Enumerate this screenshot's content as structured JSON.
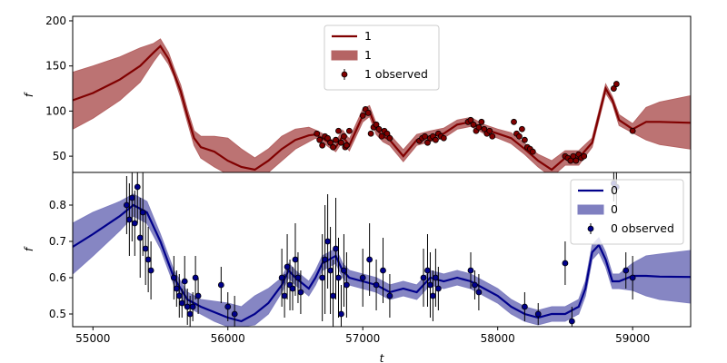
{
  "chart_data": [
    {
      "type": "line",
      "title": "",
      "xlabel": "",
      "ylabel": "f",
      "xlim": [
        54850,
        59430
      ],
      "ylim": [
        32,
        205
      ],
      "yticks": [
        50,
        100,
        150,
        200
      ],
      "series": [
        {
          "name": "1",
          "kind": "mean",
          "color": "#800000",
          "x": [
            54850,
            55000,
            55200,
            55350,
            55450,
            55500,
            55560,
            55600,
            55650,
            55700,
            55750,
            55800,
            55900,
            56000,
            56100,
            56200,
            56300,
            56400,
            56500,
            56600,
            56650,
            56700,
            56750,
            56800,
            56850,
            56900,
            57000,
            57050,
            57100,
            57150,
            57200,
            57300,
            57400,
            57500,
            57600,
            57700,
            57800,
            57900,
            58000,
            58100,
            58200,
            58300,
            58400,
            58500,
            58600,
            58700,
            58800,
            58850,
            58900,
            59000,
            59100,
            59200,
            59430
          ],
          "values": [
            112,
            120,
            135,
            150,
            165,
            172,
            158,
            142,
            122,
            95,
            70,
            60,
            55,
            45,
            38,
            35,
            45,
            58,
            68,
            73,
            74,
            70,
            65,
            60,
            72,
            62,
            95,
            100,
            80,
            72,
            68,
            50,
            68,
            72,
            75,
            85,
            88,
            80,
            75,
            70,
            58,
            45,
            35,
            48,
            48,
            65,
            125,
            112,
            90,
            80,
            88,
            88,
            87
          ]
        },
        {
          "name": "1",
          "kind": "band",
          "color": "#b56464",
          "x": [
            54850,
            55000,
            55200,
            55350,
            55450,
            55500,
            55560,
            55600,
            55650,
            55700,
            55750,
            55800,
            55900,
            56000,
            56100,
            56200,
            56300,
            56400,
            56500,
            56600,
            56650,
            56700,
            56750,
            56800,
            56850,
            56900,
            57000,
            57050,
            57100,
            57150,
            57200,
            57300,
            57400,
            57500,
            57600,
            57700,
            57800,
            57900,
            58000,
            58100,
            58200,
            58300,
            58400,
            58500,
            58600,
            58700,
            58800,
            58850,
            58900,
            59000,
            59100,
            59200,
            59430
          ],
          "lower": [
            80,
            92,
            112,
            132,
            155,
            165,
            152,
            138,
            115,
            88,
            62,
            48,
            38,
            30,
            22,
            25,
            32,
            45,
            58,
            66,
            70,
            66,
            60,
            55,
            66,
            56,
            88,
            94,
            74,
            66,
            62,
            44,
            62,
            66,
            70,
            80,
            83,
            75,
            70,
            64,
            52,
            38,
            27,
            40,
            40,
            60,
            120,
            108,
            84,
            76,
            68,
            63,
            58
          ],
          "upper": [
            143,
            150,
            160,
            170,
            175,
            180,
            165,
            148,
            129,
            102,
            78,
            72,
            72,
            70,
            58,
            48,
            58,
            72,
            80,
            82,
            79,
            75,
            70,
            66,
            79,
            69,
            102,
            106,
            86,
            78,
            74,
            57,
            74,
            78,
            81,
            90,
            93,
            85,
            80,
            76,
            64,
            52,
            45,
            56,
            56,
            70,
            130,
            116,
            96,
            86,
            104,
            110,
            117
          ]
        },
        {
          "name": "1 observed",
          "kind": "observed",
          "color": "#800000",
          "x": [
            56660,
            56680,
            56700,
            56720,
            56740,
            56760,
            56780,
            56800,
            56820,
            56840,
            56860,
            56870,
            56880,
            56900,
            57000,
            57020,
            57040,
            57060,
            57080,
            57100,
            57120,
            57140,
            57160,
            57180,
            57200,
            57420,
            57440,
            57460,
            57480,
            57500,
            57520,
            57540,
            57560,
            57580,
            57600,
            57780,
            57800,
            57820,
            57840,
            57860,
            57880,
            57900,
            57920,
            57940,
            57960,
            58120,
            58140,
            58160,
            58180,
            58200,
            58220,
            58240,
            58260,
            58500,
            58520,
            58540,
            58560,
            58580,
            58600,
            58620,
            58640,
            58860,
            58880,
            59000
          ],
          "values": [
            75,
            68,
            62,
            72,
            70,
            65,
            60,
            68,
            78,
            65,
            72,
            60,
            62,
            78,
            95,
            102,
            98,
            75,
            82,
            85,
            80,
            72,
            78,
            75,
            70,
            67,
            70,
            72,
            65,
            70,
            72,
            68,
            75,
            72,
            70,
            88,
            90,
            85,
            78,
            82,
            88,
            80,
            75,
            78,
            72,
            88,
            75,
            72,
            80,
            68,
            60,
            58,
            55,
            50,
            48,
            45,
            50,
            45,
            52,
            48,
            50,
            125,
            130,
            78
          ],
          "err": [
            3,
            3,
            3,
            3,
            3,
            3,
            3,
            3,
            3,
            3,
            3,
            3,
            3,
            3,
            3,
            3,
            3,
            3,
            3,
            3,
            3,
            3,
            3,
            3,
            3,
            3,
            3,
            3,
            3,
            3,
            3,
            3,
            3,
            3,
            3,
            3,
            3,
            3,
            3,
            3,
            3,
            3,
            3,
            3,
            3,
            3,
            3,
            3,
            3,
            3,
            3,
            3,
            3,
            3,
            3,
            3,
            3,
            3,
            3,
            3,
            3,
            3,
            3,
            3
          ]
        }
      ],
      "legend": {
        "position": "top-center",
        "entries": [
          {
            "label": "1",
            "marker": "line",
            "color": "#800000"
          },
          {
            "label": "1",
            "marker": "patch",
            "color": "#b56464"
          },
          {
            "label": "1 observed",
            "marker": "errorbar",
            "color": "#800000"
          }
        ]
      },
      "grid": false
    },
    {
      "type": "line",
      "title": "",
      "xlabel": "t",
      "ylabel": "f",
      "xlim": [
        54850,
        59430
      ],
      "ylim": [
        0.465,
        0.89
      ],
      "yticks": [
        0.5,
        0.6,
        0.7,
        0.8
      ],
      "xticks": [
        55000,
        56000,
        57000,
        58000,
        59000
      ],
      "series": [
        {
          "name": "0",
          "kind": "mean",
          "color": "#00008b",
          "x": [
            54850,
            55000,
            55200,
            55300,
            55400,
            55500,
            55600,
            55700,
            55800,
            55900,
            56000,
            56100,
            56200,
            56300,
            56400,
            56450,
            56500,
            56600,
            56650,
            56700,
            56800,
            56850,
            56900,
            57000,
            57100,
            57200,
            57300,
            57400,
            57500,
            57600,
            57700,
            57800,
            57900,
            58000,
            58100,
            58200,
            58300,
            58400,
            58500,
            58600,
            58650,
            58700,
            58750,
            58800,
            58850,
            58900,
            59000,
            59100,
            59200,
            59430
          ],
          "values": [
            0.685,
            0.72,
            0.77,
            0.8,
            0.78,
            0.7,
            0.6,
            0.54,
            0.52,
            0.505,
            0.49,
            0.48,
            0.5,
            0.53,
            0.58,
            0.62,
            0.6,
            0.57,
            0.6,
            0.64,
            0.66,
            0.62,
            0.6,
            0.59,
            0.58,
            0.56,
            0.57,
            0.56,
            0.6,
            0.59,
            0.6,
            0.59,
            0.57,
            0.55,
            0.52,
            0.5,
            0.49,
            0.5,
            0.5,
            0.52,
            0.57,
            0.67,
            0.69,
            0.65,
            0.59,
            0.59,
            0.605,
            0.605,
            0.603,
            0.602
          ]
        },
        {
          "name": "0",
          "kind": "band",
          "color": "#7f7fc0",
          "x": [
            54850,
            55000,
            55200,
            55300,
            55400,
            55500,
            55600,
            55700,
            55800,
            55900,
            56000,
            56100,
            56200,
            56300,
            56400,
            56450,
            56500,
            56600,
            56650,
            56700,
            56800,
            56850,
            56900,
            57000,
            57100,
            57200,
            57300,
            57400,
            57500,
            57600,
            57700,
            57800,
            57900,
            58000,
            58100,
            58200,
            58300,
            58400,
            58500,
            58600,
            58650,
            58700,
            58750,
            58800,
            58850,
            58900,
            59000,
            59100,
            59200,
            59430
          ],
          "lower": [
            0.61,
            0.66,
            0.73,
            0.77,
            0.75,
            0.68,
            0.58,
            0.52,
            0.5,
            0.48,
            0.465,
            0.465,
            0.47,
            0.5,
            0.56,
            0.6,
            0.58,
            0.55,
            0.58,
            0.62,
            0.64,
            0.6,
            0.58,
            0.57,
            0.56,
            0.54,
            0.55,
            0.54,
            0.58,
            0.57,
            0.58,
            0.57,
            0.55,
            0.53,
            0.5,
            0.48,
            0.47,
            0.48,
            0.48,
            0.5,
            0.55,
            0.65,
            0.67,
            0.63,
            0.57,
            0.57,
            0.565,
            0.55,
            0.54,
            0.53
          ],
          "upper": [
            0.75,
            0.78,
            0.81,
            0.83,
            0.81,
            0.72,
            0.62,
            0.56,
            0.54,
            0.535,
            0.53,
            0.52,
            0.55,
            0.57,
            0.6,
            0.64,
            0.62,
            0.59,
            0.62,
            0.66,
            0.68,
            0.64,
            0.62,
            0.61,
            0.6,
            0.58,
            0.59,
            0.58,
            0.62,
            0.61,
            0.62,
            0.61,
            0.59,
            0.57,
            0.54,
            0.52,
            0.51,
            0.52,
            0.52,
            0.54,
            0.59,
            0.69,
            0.71,
            0.67,
            0.61,
            0.61,
            0.64,
            0.66,
            0.665,
            0.675
          ]
        },
        {
          "name": "0 observed",
          "kind": "observed",
          "color": "#00008b",
          "x": [
            55250,
            55270,
            55290,
            55310,
            55330,
            55350,
            55370,
            55390,
            55410,
            55430,
            55600,
            55620,
            55640,
            55660,
            55680,
            55700,
            55720,
            55740,
            55760,
            55780,
            55950,
            56000,
            56050,
            56400,
            56420,
            56440,
            56460,
            56480,
            56500,
            56520,
            56540,
            56700,
            56720,
            56740,
            56760,
            56780,
            56800,
            56820,
            56840,
            56860,
            56880,
            57000,
            57050,
            57100,
            57150,
            57200,
            57450,
            57480,
            57500,
            57520,
            57540,
            57560,
            57800,
            57830,
            57860,
            58200,
            58300,
            58500,
            58550,
            58860,
            58880,
            58950,
            59000
          ],
          "values": [
            0.8,
            0.76,
            0.82,
            0.75,
            0.85,
            0.71,
            0.78,
            0.68,
            0.65,
            0.62,
            0.6,
            0.57,
            0.55,
            0.53,
            0.59,
            0.52,
            0.5,
            0.52,
            0.6,
            0.55,
            0.58,
            0.52,
            0.5,
            0.6,
            0.55,
            0.63,
            0.58,
            0.57,
            0.65,
            0.6,
            0.56,
            0.6,
            0.65,
            0.7,
            0.62,
            0.55,
            0.68,
            0.6,
            0.5,
            0.62,
            0.58,
            0.6,
            0.65,
            0.58,
            0.62,
            0.55,
            0.6,
            0.62,
            0.58,
            0.55,
            0.6,
            0.57,
            0.62,
            0.58,
            0.56,
            0.52,
            0.5,
            0.64,
            0.48,
            0.86,
            0.85,
            0.62,
            0.6
          ],
          "err": [
            0.08,
            0.1,
            0.12,
            0.09,
            0.1,
            0.11,
            0.12,
            0.1,
            0.09,
            0.08,
            0.06,
            0.05,
            0.06,
            0.04,
            0.07,
            0.05,
            0.05,
            0.04,
            0.06,
            0.05,
            0.05,
            0.04,
            0.05,
            0.08,
            0.06,
            0.09,
            0.07,
            0.06,
            0.1,
            0.07,
            0.06,
            0.12,
            0.15,
            0.13,
            0.12,
            0.1,
            0.14,
            0.11,
            0.08,
            0.1,
            0.09,
            0.08,
            0.1,
            0.07,
            0.09,
            0.06,
            0.08,
            0.1,
            0.09,
            0.07,
            0.08,
            0.06,
            0.05,
            0.04,
            0.05,
            0.04,
            0.03,
            0.06,
            0.04,
            0.05,
            0.06,
            0.05,
            0.06
          ]
        }
      ],
      "legend": {
        "position": "top-right",
        "entries": [
          {
            "label": "0",
            "marker": "line",
            "color": "#00008b"
          },
          {
            "label": "0",
            "marker": "patch",
            "color": "#7f7fc0"
          },
          {
            "label": "0 observed",
            "marker": "errorbar",
            "color": "#00008b"
          }
        ]
      },
      "grid": false
    }
  ]
}
